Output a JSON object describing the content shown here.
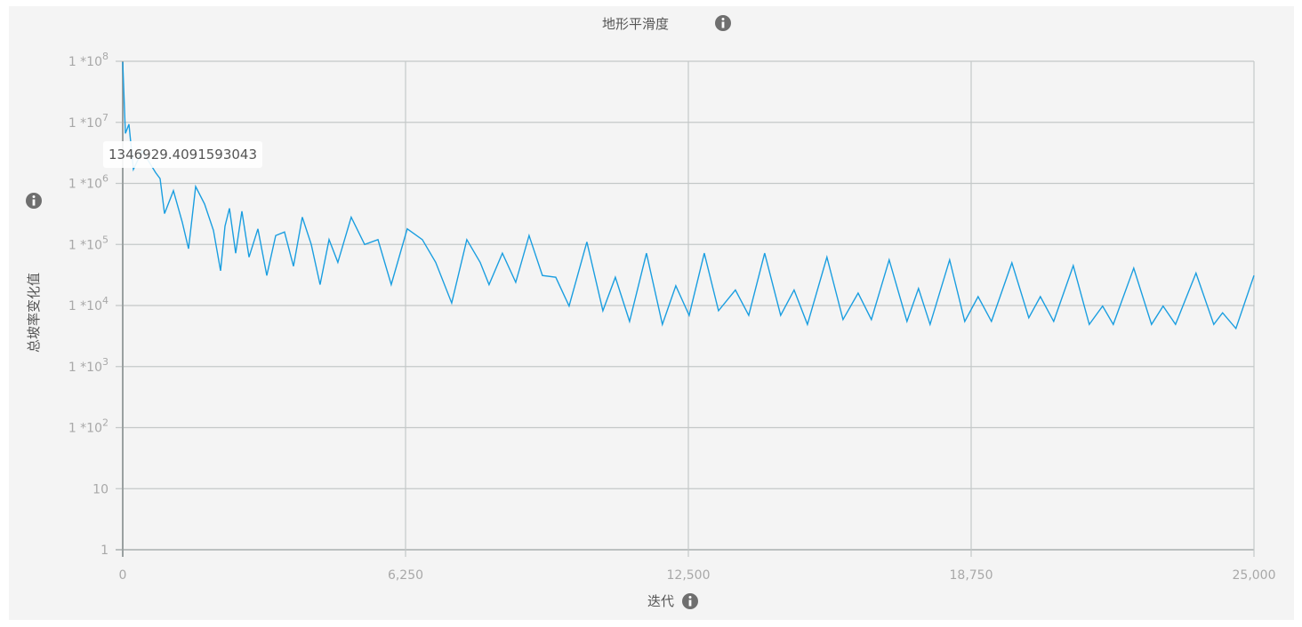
{
  "chart_data": {
    "type": "line",
    "title": "地形平滑度",
    "xlabel": "迭代",
    "ylabel": "总坡率变化值",
    "xlim": [
      0,
      25000
    ],
    "ylim": [
      1,
      100000000
    ],
    "yscale": "log",
    "grid": true,
    "line_color": "#1a9ee0",
    "x_ticks": [
      "0",
      "6,250",
      "12,500",
      "18,750",
      "25,000"
    ],
    "x_tick_values": [
      0,
      6250,
      12500,
      18750,
      25000
    ],
    "y_ticks": [
      {
        "value": 100000000,
        "base": "1 *10",
        "exp": "8"
      },
      {
        "value": 10000000,
        "base": "1 *10",
        "exp": "7"
      },
      {
        "value": 1000000,
        "base": "1 *10",
        "exp": "6"
      },
      {
        "value": 100000,
        "base": "1 *10",
        "exp": "5"
      },
      {
        "value": 10000,
        "base": "1 *10",
        "exp": "4"
      },
      {
        "value": 1000,
        "base": "1 *10",
        "exp": "3"
      },
      {
        "value": 100,
        "base": "1 *10",
        "exp": "2"
      },
      {
        "value": 10,
        "base": "10",
        "exp": ""
      },
      {
        "value": 1,
        "base": "1",
        "exp": ""
      }
    ],
    "tooltip": "1346929.4091593043",
    "series": [
      {
        "x": [
          0,
          59,
          138,
          236,
          432,
          727,
          825,
          924,
          1120,
          1317,
          1454,
          1611,
          1808,
          2004,
          2161,
          2260,
          2358,
          2496,
          2633,
          2790,
          2987,
          3183,
          3380,
          3576,
          3773,
          3969,
          4166,
          4362,
          4559,
          4755,
          5050,
          5345,
          5640,
          5934,
          6288,
          6622,
          6917,
          7270,
          7604,
          7899,
          8096,
          8390,
          8685,
          8980,
          9275,
          9570,
          9864,
          10257,
          10611,
          10886,
          11200,
          11574,
          11927,
          12222,
          12517,
          12851,
          13166,
          13539,
          13834,
          14187,
          14541,
          14836,
          15131,
          15563,
          15917,
          16251,
          16545,
          16938,
          17331,
          17587,
          17842,
          18275,
          18609,
          18903,
          19198,
          19650,
          20023,
          20279,
          20574,
          21006,
          21360,
          21654,
          21890,
          22342,
          22735,
          22991,
          23266,
          23718,
          24111,
          24307,
          24602,
          25000
        ],
        "y": [
          97000000,
          6600000,
          9300000,
          1700000,
          3400000,
          1500000,
          1200000,
          320000,
          760000,
          230000,
          85000,
          890000,
          460000,
          170000,
          37000,
          200000,
          390000,
          72000,
          350000,
          62000,
          180000,
          31000,
          140000,
          160000,
          44000,
          280000,
          100000,
          22000,
          120000,
          51000,
          280000,
          100000,
          120000,
          22000,
          180000,
          120000,
          51000,
          11000,
          120000,
          51000,
          22000,
          72000,
          24000,
          140000,
          31000,
          29000,
          9800,
          110000,
          8200,
          29000,
          5500,
          72000,
          4900,
          21000,
          6900,
          72000,
          8200,
          18000,
          6900,
          72000,
          6900,
          18000,
          4900,
          62000,
          5900,
          16000,
          5900,
          56000,
          5500,
          19000,
          4900,
          56000,
          5500,
          14000,
          5500,
          50000,
          6300,
          14000,
          5500,
          45000,
          4900,
          9800,
          4900,
          41000,
          4900,
          9800,
          4900,
          34000,
          4900,
          7600,
          4200,
          31000
        ]
      }
    ]
  }
}
